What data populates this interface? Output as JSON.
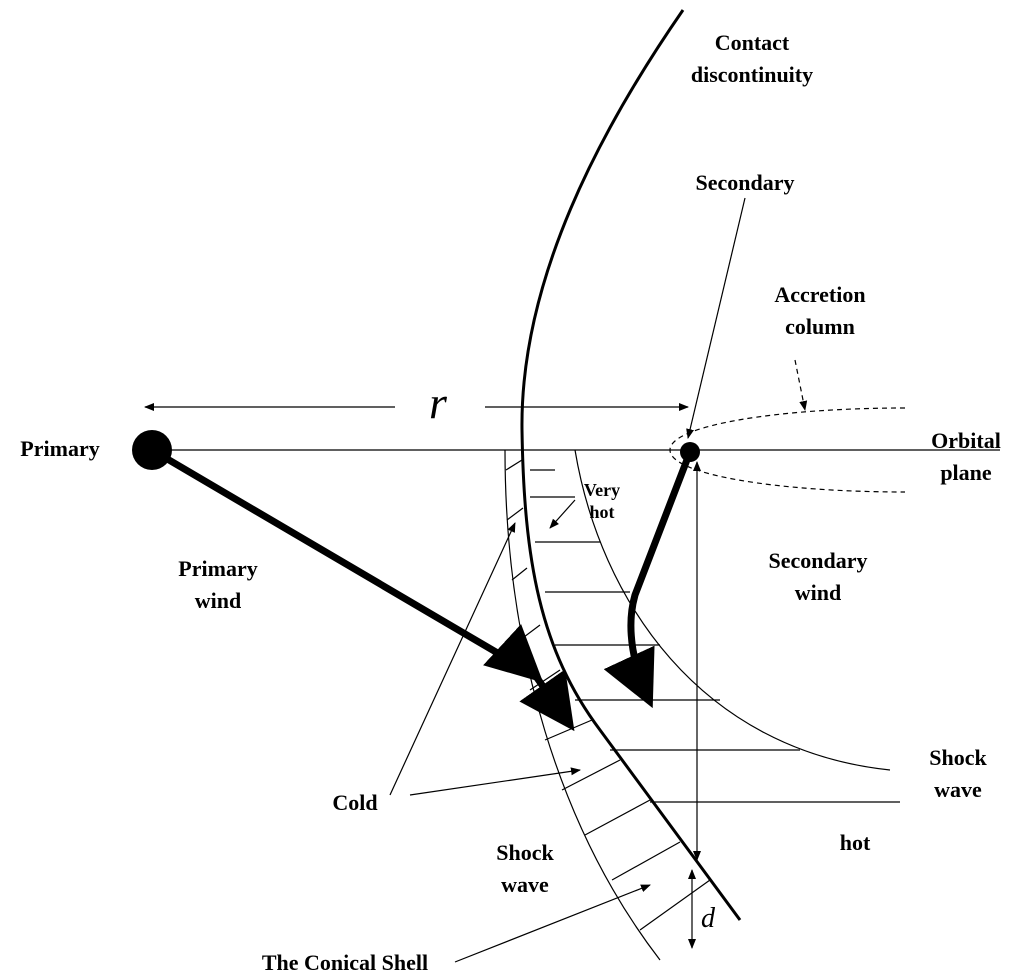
{
  "labels": {
    "contact": [
      "Contact",
      "discontinuity"
    ],
    "secondary": "Secondary",
    "accretion": [
      "Accretion",
      "column"
    ],
    "r": "r",
    "primary": "Primary",
    "orbital": [
      "Orbital",
      "plane"
    ],
    "very_hot": [
      "Very",
      "hot"
    ],
    "primary_wind": [
      "Primary",
      "wind"
    ],
    "secondary_wind": [
      "Secondary",
      "wind"
    ],
    "cold": "Cold",
    "shock_right": [
      "Shock",
      "wave"
    ],
    "shock_bottom": [
      "Shock",
      "wave"
    ],
    "hot": "hot",
    "d": "d",
    "conical_shell": "The Conical Shell"
  }
}
